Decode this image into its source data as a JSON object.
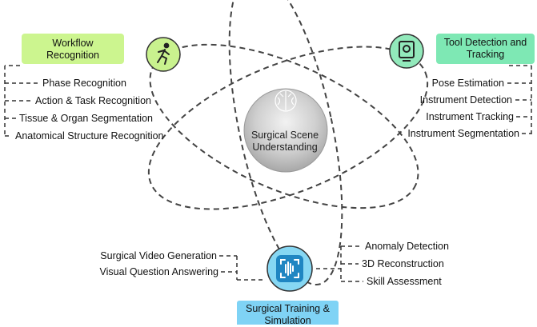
{
  "center": {
    "line1": "Surgical Scene",
    "line2": "Understanding"
  },
  "workflow": {
    "title_line1": "Workflow",
    "title_line2": "Recognition",
    "items": [
      "Phase Recognition",
      "Action & Task Recognition",
      "Tissue & Organ Segmentation",
      "Anatomical Structure Recognition"
    ]
  },
  "tool": {
    "title_line1": "Tool Detection and",
    "title_line2": "Tracking",
    "items": [
      "Pose Estimation",
      "Instrument Detection",
      "Instrument Tracking",
      "Instrument Segmentation"
    ]
  },
  "training": {
    "title_line1": "Surgical Training &",
    "title_line2": "Simulation",
    "left_items": [
      "Surgical Video Generation",
      "Visual Question Answering"
    ],
    "right_items": [
      "Anomaly Detection",
      "3D Reconstruction",
      "Skill Assessment"
    ]
  },
  "icons": [
    "person-walking-icon",
    "instrument-screen-icon",
    "waveform-scan-icon",
    "brain-icon"
  ],
  "colors": {
    "workflow_box": "#ccf58f",
    "tool_box": "#7ee8b4",
    "training_box": "#7fd3f5",
    "center_circle": "#bdbdbd",
    "icon_workflow": "#c9f28e",
    "icon_tool": "#92e9bb",
    "icon_training": "#86d7f3"
  }
}
